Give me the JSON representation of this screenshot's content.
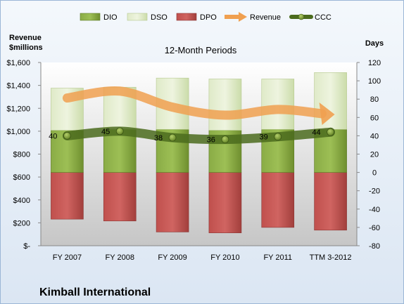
{
  "chart_data": {
    "type": "bar",
    "title": "12-Month Periods",
    "company": "Kimball International",
    "left_axis_label": [
      "Revenue",
      "$millions"
    ],
    "right_axis_label": "Days",
    "categories": [
      "FY 2007",
      "FY 2008",
      "FY 2009",
      "FY 2010",
      "FY 2011",
      "TTM 3-2012"
    ],
    "left_ticks": [
      "$-",
      "$200",
      "$400",
      "$600",
      "$800",
      "$1,000",
      "$1,200",
      "$1,400",
      "$1,600"
    ],
    "left_ylim": [
      0,
      1600
    ],
    "right_ticks": [
      "-80",
      "-60",
      "-40",
      "-20",
      "0",
      "20",
      "40",
      "60",
      "80",
      "100",
      "120"
    ],
    "right_ylim": [
      -80,
      120
    ],
    "legend": [
      "DIO",
      "DSO",
      "DPO",
      "Revenue",
      "CCC"
    ],
    "legend_position": "top",
    "series": [
      {
        "name": "DIO",
        "axis": "days",
        "color": "#7a9a3a",
        "values": [
          46,
          47,
          47,
          46,
          47,
          47
        ]
      },
      {
        "name": "DSO",
        "axis": "days",
        "color": "#d7e4bd",
        "values": [
          46,
          46,
          56,
          56,
          55,
          62
        ]
      },
      {
        "name": "DPO",
        "axis": "days",
        "color": "#b94a48",
        "values": [
          -51,
          -53,
          -65,
          -66,
          -60,
          -63
        ]
      },
      {
        "name": "Revenue",
        "axis": "revenue",
        "color": "#f0a050",
        "values": [
          1290,
          1350,
          1210,
          1140,
          1190,
          1140
        ]
      },
      {
        "name": "CCC",
        "axis": "days",
        "color": "#4b6b1d",
        "values": [
          40,
          45,
          38,
          36,
          39,
          44
        ]
      }
    ],
    "ccc_labels": [
      "40",
      "45",
      "38",
      "36",
      "39",
      "44"
    ]
  }
}
